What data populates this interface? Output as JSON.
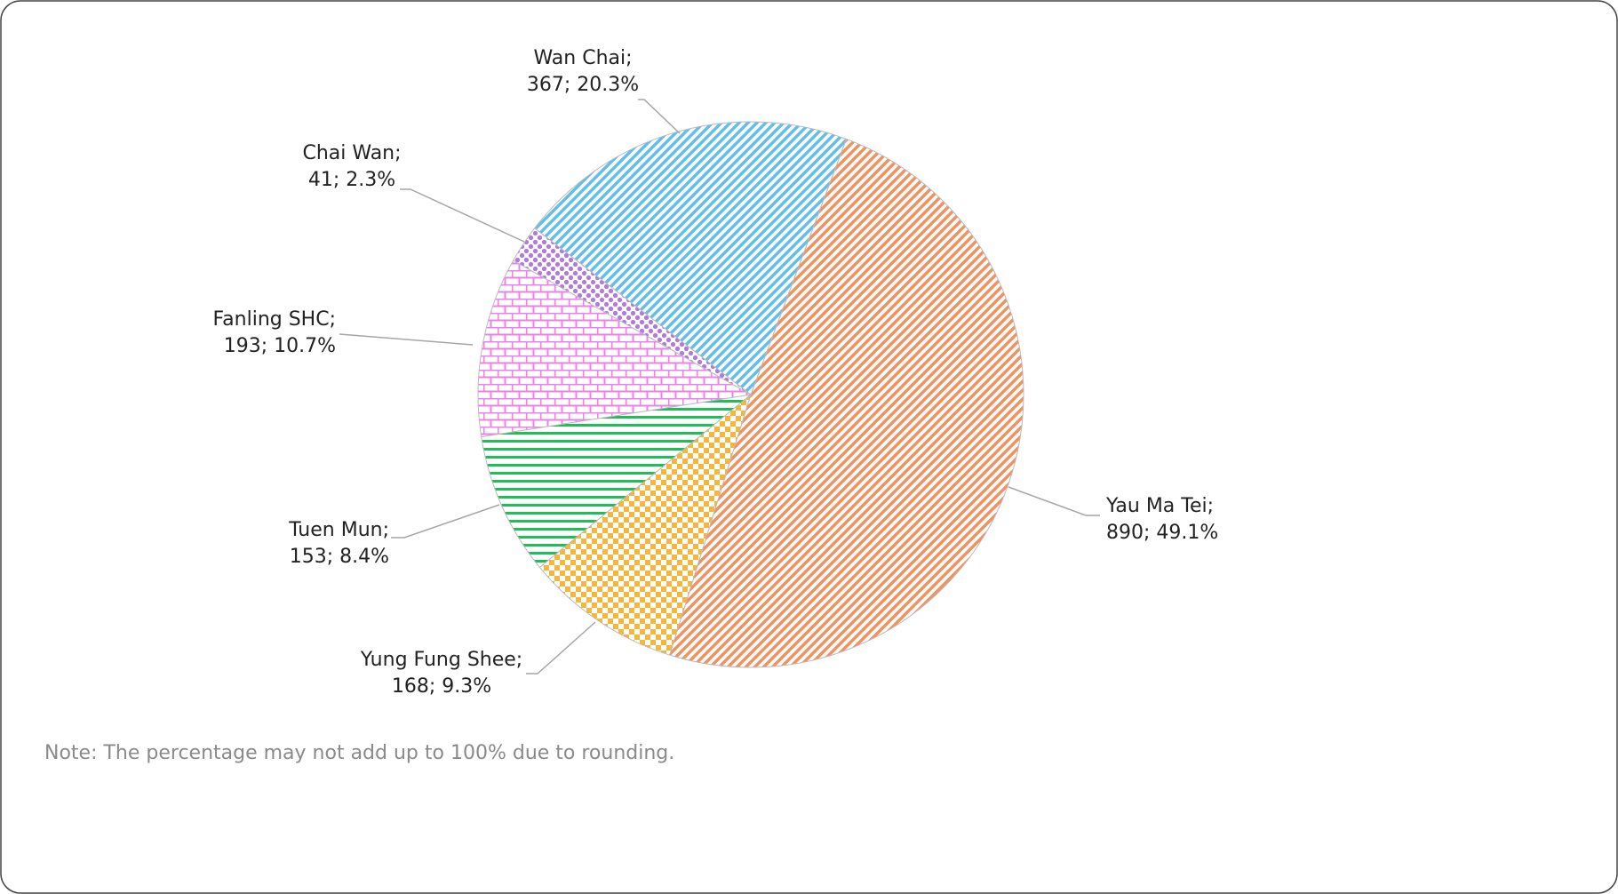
{
  "chart_data": {
    "type": "pie",
    "categories": [
      "Yau Ma Tei;",
      "Yung Fung Shee;",
      "Tuen Mun;",
      "Fanling SHC;",
      "Chai Wan;",
      "Wan Chai;"
    ],
    "values": [
      890,
      168,
      153,
      193,
      41,
      367
    ],
    "value_labels": [
      "890; 49.1%",
      "168; 9.3%",
      "153; 8.4%",
      "193; 10.7%",
      "41; 2.3%",
      "367; 20.3%"
    ],
    "colors": [
      "#f4915f",
      "#f5b63c",
      "#1fbf57",
      "#ee7fee",
      "#b27ae0",
      "#63bdf0"
    ],
    "patterns": [
      "diagonal",
      "checker",
      "horizontal",
      "brick",
      "dots",
      "diagonal"
    ],
    "note": "Note: The percentage may not add up to 100% due to rounding."
  }
}
